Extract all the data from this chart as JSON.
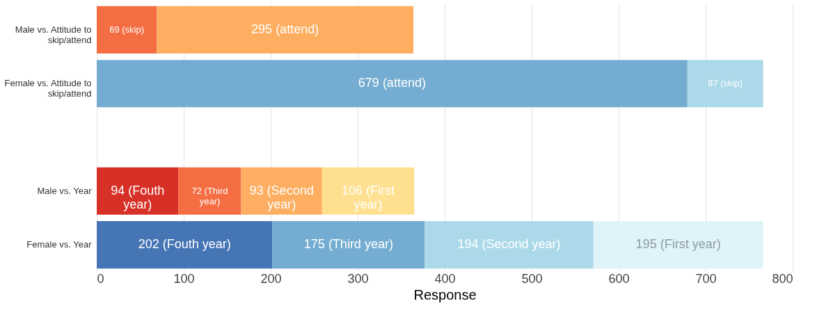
{
  "chart_data": {
    "type": "bar",
    "orientation": "horizontal",
    "stacked": true,
    "categories": [
      "Male vs. Attitude to skip/attend",
      "Female vs. Attitude to skip/attend",
      null,
      "Male vs. Year",
      "Female vs. Year"
    ],
    "series": [
      {
        "values": [
          69,
          679,
          null,
          94,
          202
        ],
        "colors": [
          "#f46d43",
          "#74add1",
          null,
          "#d73027",
          "#4575b4"
        ],
        "value_labels": [
          "69 (skip)",
          "679 (attend)",
          null,
          "94 (Fouth year)",
          "202 (Fouth year)"
        ]
      },
      {
        "values": [
          295,
          87,
          null,
          72,
          175
        ],
        "colors": [
          "#fdae61",
          "#abd9e9",
          null,
          "#f46d43",
          "#74add1"
        ],
        "value_labels": [
          "295 (attend)",
          "87 (skip)",
          null,
          "72 (Third year)",
          "175 (Third year)"
        ]
      },
      {
        "values": [
          null,
          null,
          null,
          93,
          194
        ],
        "colors": [
          null,
          null,
          null,
          "#fdae61",
          "#abd9e9"
        ],
        "value_labels": [
          null,
          null,
          null,
          "93 (Second year)",
          "194 (Second year)"
        ]
      },
      {
        "values": [
          null,
          null,
          null,
          106,
          195
        ],
        "colors": [
          null,
          null,
          null,
          "#fee090",
          "#e0f3f8"
        ],
        "value_labels": [
          null,
          null,
          null,
          "106 (First year)",
          "195 (First year)"
        ]
      }
    ],
    "xlabel": "Response",
    "xlim": [
      0,
      800
    ],
    "xticks": [
      0,
      100,
      200,
      300,
      400,
      500,
      600,
      700,
      800
    ],
    "grid": "x",
    "legend": false
  }
}
